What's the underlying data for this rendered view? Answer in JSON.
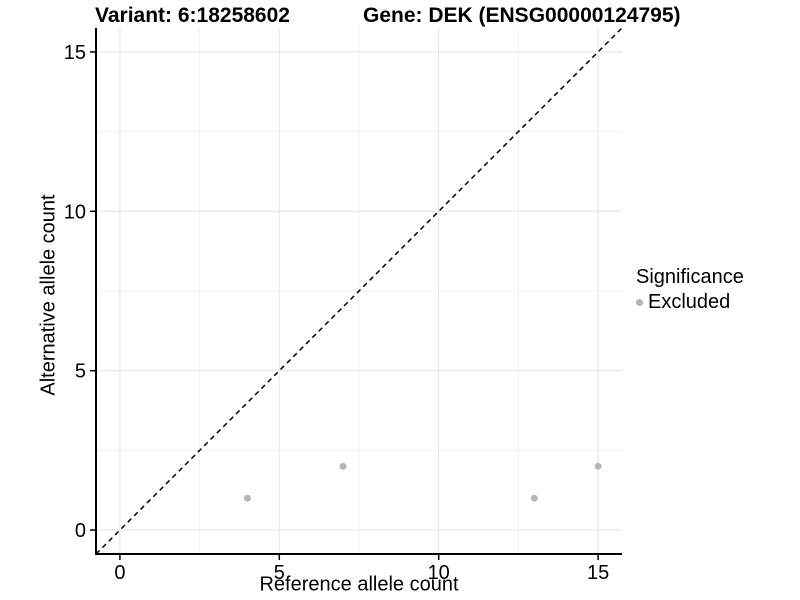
{
  "figure": {
    "title_left": "Variant: 6:18258602",
    "title_right": "Gene: DEK (ENSG00000124795)"
  },
  "chart_data": {
    "type": "scatter",
    "title_left": "Variant: 6:18258602",
    "title_right": "Gene: DEK (ENSG00000124795)",
    "xlabel": "Reference allele count",
    "ylabel": "Alternative allele count",
    "xlim": [
      -0.75,
      15.75
    ],
    "ylim": [
      -0.75,
      15.75
    ],
    "x_major_ticks": [
      0,
      5,
      10,
      15
    ],
    "y_major_ticks": [
      0,
      5,
      10,
      15
    ],
    "x_minor_ticks": [
      2.5,
      7.5,
      12.5
    ],
    "y_minor_ticks": [
      2.5,
      7.5,
      12.5
    ],
    "grid": true,
    "identity_line": {
      "slope": 1,
      "intercept": 0,
      "style": "dashed",
      "color": "#000000"
    },
    "series": [
      {
        "name": "Excluded",
        "color": "#b5b5b5",
        "points": [
          {
            "x": 4,
            "y": 1
          },
          {
            "x": 7,
            "y": 2
          },
          {
            "x": 13,
            "y": 1
          },
          {
            "x": 15,
            "y": 2
          }
        ]
      }
    ],
    "legend": {
      "title": "Significance",
      "position": "right",
      "items": [
        {
          "label": "Excluded",
          "color": "#b5b5b5"
        }
      ]
    },
    "style_colors": {
      "grid_major": "#e4e4e4",
      "grid_minor": "#f1f1f1",
      "axis_line": "#000000",
      "tick_text": "#000000",
      "point": "#b5b5b5"
    }
  }
}
